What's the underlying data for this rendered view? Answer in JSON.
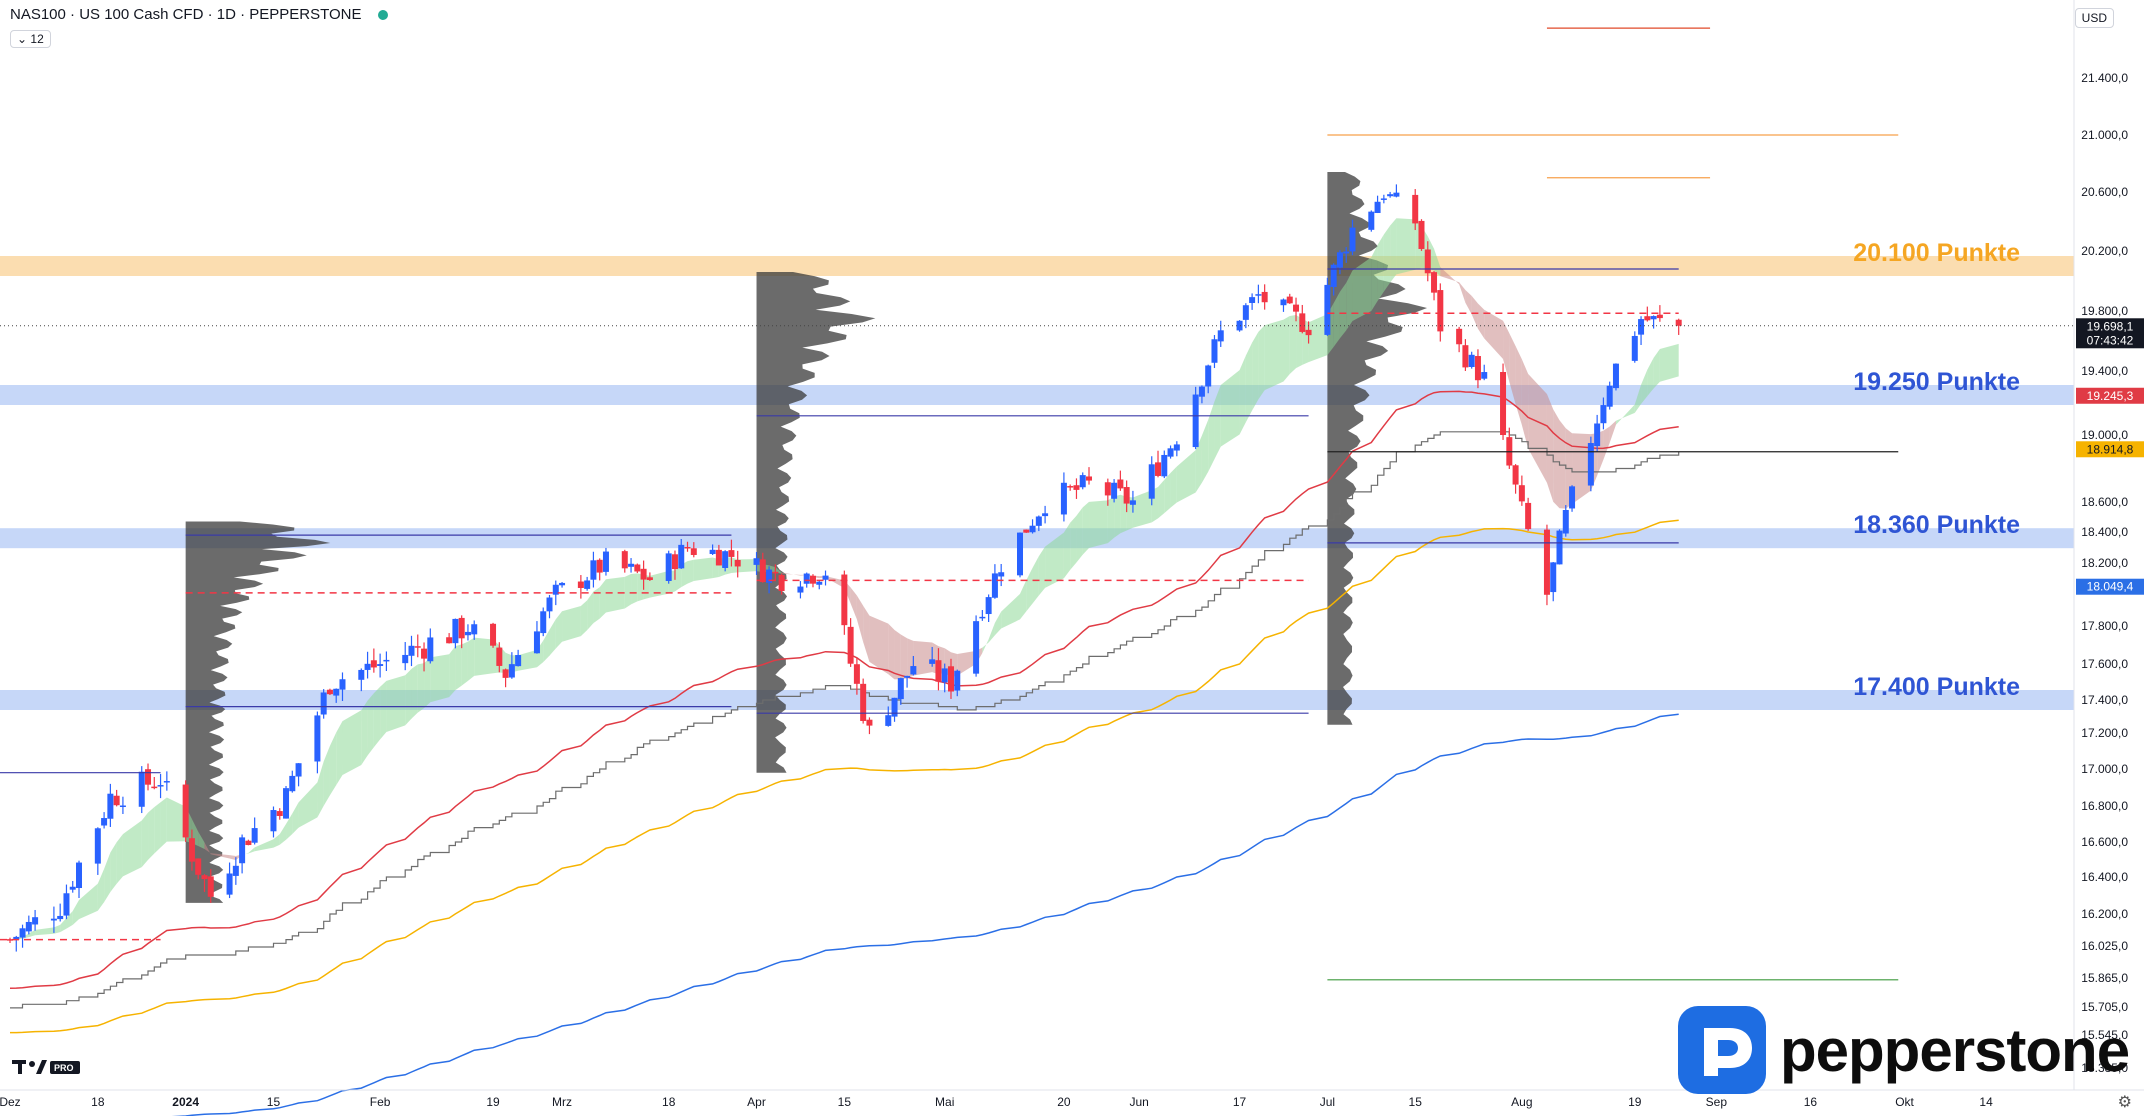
{
  "header": {
    "title": "NAS100 · US 100 Cash CFD · 1D · PEPPERSTONE",
    "interval_badge": "12",
    "currency": "USD"
  },
  "brand": {
    "name": "pepperstone",
    "badge": "TV PRO"
  },
  "colors": {
    "up": "#2962ff",
    "down": "#f23645",
    "level_blue_band": "#bcd0f7",
    "level_orange_band": "#fad7a2",
    "label_blue": "#2f55d4",
    "label_orange": "#f5a623",
    "ema_red": "#e03b45",
    "ema_orange": "#f6b300",
    "ema_blue": "#2b6fe6",
    "step_gray": "#6d6d6d",
    "cloud_green": "#8ed897",
    "cloud_red": "#c98a8a",
    "volume_profile": "#3a3a3a"
  },
  "chart_data": {
    "type": "candlestick",
    "symbol": "NAS100",
    "timeframe": "1D",
    "y_axis": {
      "min": 15300,
      "max": 21900,
      "tick_labels": [
        "21.400,0",
        "21.000,0",
        "20.600,0",
        "20.200,0",
        "19.800,0",
        "19.400,0",
        "19.000,0",
        "18.600,0",
        "18.400,0",
        "18.200,0",
        "17.800,0",
        "17.600,0",
        "17.400,0",
        "17.200,0",
        "17.000,0",
        "16.800,0",
        "16.600,0",
        "16.400,0",
        "16.200,0",
        "16.025,0",
        "15.865,0",
        "15.705,0",
        "15.545,0",
        "15.385,0"
      ],
      "tick_values": [
        21400,
        21000,
        20600,
        20200,
        19800,
        19400,
        19000,
        18600,
        18400,
        18200,
        17800,
        17600,
        17400,
        17200,
        17000,
        16800,
        16600,
        16400,
        16200,
        16025,
        15865,
        15705,
        15545,
        15385
      ]
    },
    "x_axis": {
      "start": "2023-12-04",
      "end": "2024-10-21",
      "tick_labels": [
        {
          "date": "2023-12-04",
          "label": "Dez"
        },
        {
          "date": "2023-12-18",
          "label": "18"
        },
        {
          "date": "2024-01-01",
          "label": "2024"
        },
        {
          "date": "2024-01-15",
          "label": "15"
        },
        {
          "date": "2024-02-01",
          "label": "Feb"
        },
        {
          "date": "2024-02-19",
          "label": "19"
        },
        {
          "date": "2024-03-01",
          "label": "Mrz"
        },
        {
          "date": "2024-03-18",
          "label": "18"
        },
        {
          "date": "2024-04-01",
          "label": "Apr"
        },
        {
          "date": "2024-04-15",
          "label": "15"
        },
        {
          "date": "2024-05-01",
          "label": "Mai"
        },
        {
          "date": "2024-05-20",
          "label": "20"
        },
        {
          "date": "2024-06-01",
          "label": "Jun"
        },
        {
          "date": "2024-06-17",
          "label": "17"
        },
        {
          "date": "2024-07-01",
          "label": "Jul"
        },
        {
          "date": "2024-07-15",
          "label": "15"
        },
        {
          "date": "2024-08-01",
          "label": "Aug"
        },
        {
          "date": "2024-08-19",
          "label": "19"
        },
        {
          "date": "2024-09-01",
          "label": "Sep"
        },
        {
          "date": "2024-09-16",
          "label": "16"
        },
        {
          "date": "2024-10-01",
          "label": "Okt"
        },
        {
          "date": "2024-10-14",
          "label": "14"
        }
      ]
    },
    "price_tags": [
      {
        "value": 19698.1,
        "label": "19.698,1",
        "sublabel": "07:43:42",
        "color": "#131722"
      },
      {
        "value": 19245.3,
        "label": "19.245,3",
        "color": "#e03b45"
      },
      {
        "value": 18914.8,
        "label": "18.914,8",
        "color": "#f6b300"
      },
      {
        "value": 18049.4,
        "label": "18.049,4",
        "color": "#2b6fe6"
      }
    ],
    "levels": [
      {
        "value": 20100,
        "label": "20.100 Punkte",
        "color": "orange"
      },
      {
        "value": 19250,
        "label": "19.250 Punkte",
        "color": "blue"
      },
      {
        "value": 18360,
        "label": "18.360 Punkte",
        "color": "blue"
      },
      {
        "value": 17400,
        "label": "17.400 Punkte",
        "color": "blue"
      }
    ],
    "anchors": [
      {
        "date": "2023-12-04",
        "close": 16060
      },
      {
        "date": "2023-12-12",
        "close": 16250
      },
      {
        "date": "2023-12-20",
        "close": 16850
      },
      {
        "date": "2023-12-28",
        "close": 16950
      },
      {
        "date": "2024-01-03",
        "close": 16450
      },
      {
        "date": "2024-01-05",
        "close": 16300
      },
      {
        "date": "2024-01-10",
        "close": 16600
      },
      {
        "date": "2024-01-17",
        "close": 16850
      },
      {
        "date": "2024-01-24",
        "close": 17500
      },
      {
        "date": "2024-02-01",
        "close": 17600
      },
      {
        "date": "2024-02-08",
        "close": 17700
      },
      {
        "date": "2024-02-15",
        "close": 17800
      },
      {
        "date": "2024-02-21",
        "close": 17550
      },
      {
        "date": "2024-02-29",
        "close": 18000
      },
      {
        "date": "2024-03-08",
        "close": 18200
      },
      {
        "date": "2024-03-15",
        "close": 18100
      },
      {
        "date": "2024-03-21",
        "close": 18300
      },
      {
        "date": "2024-03-28",
        "close": 18250
      },
      {
        "date": "2024-04-05",
        "close": 18100
      },
      {
        "date": "2024-04-12",
        "close": 18150
      },
      {
        "date": "2024-04-19",
        "close": 17200
      },
      {
        "date": "2024-04-26",
        "close": 17600
      },
      {
        "date": "2024-05-02",
        "close": 17500
      },
      {
        "date": "2024-05-10",
        "close": 18200
      },
      {
        "date": "2024-05-17",
        "close": 18600
      },
      {
        "date": "2024-05-24",
        "close": 18700
      },
      {
        "date": "2024-05-31",
        "close": 18600
      },
      {
        "date": "2024-06-07",
        "close": 19000
      },
      {
        "date": "2024-06-14",
        "close": 19650
      },
      {
        "date": "2024-06-20",
        "close": 19900
      },
      {
        "date": "2024-06-28",
        "close": 19700
      },
      {
        "date": "2024-07-05",
        "close": 20350
      },
      {
        "date": "2024-07-10",
        "close": 20600
      },
      {
        "date": "2024-07-15",
        "close": 20400
      },
      {
        "date": "2024-07-19",
        "close": 19700
      },
      {
        "date": "2024-07-26",
        "close": 19350
      },
      {
        "date": "2024-08-02",
        "close": 18400
      },
      {
        "date": "2024-08-05",
        "close": 18000
      },
      {
        "date": "2024-08-08",
        "close": 18500
      },
      {
        "date": "2024-08-15",
        "close": 19350
      },
      {
        "date": "2024-08-20",
        "close": 19750
      },
      {
        "date": "2024-08-26",
        "close": 19698
      }
    ],
    "moving_averages": [
      {
        "name": "ema_red",
        "last": 19245.3
      },
      {
        "name": "ema_orange",
        "last": 18914.8
      },
      {
        "name": "ema_blue",
        "last": 18049.4
      }
    ],
    "grid": false,
    "legend": "none"
  }
}
